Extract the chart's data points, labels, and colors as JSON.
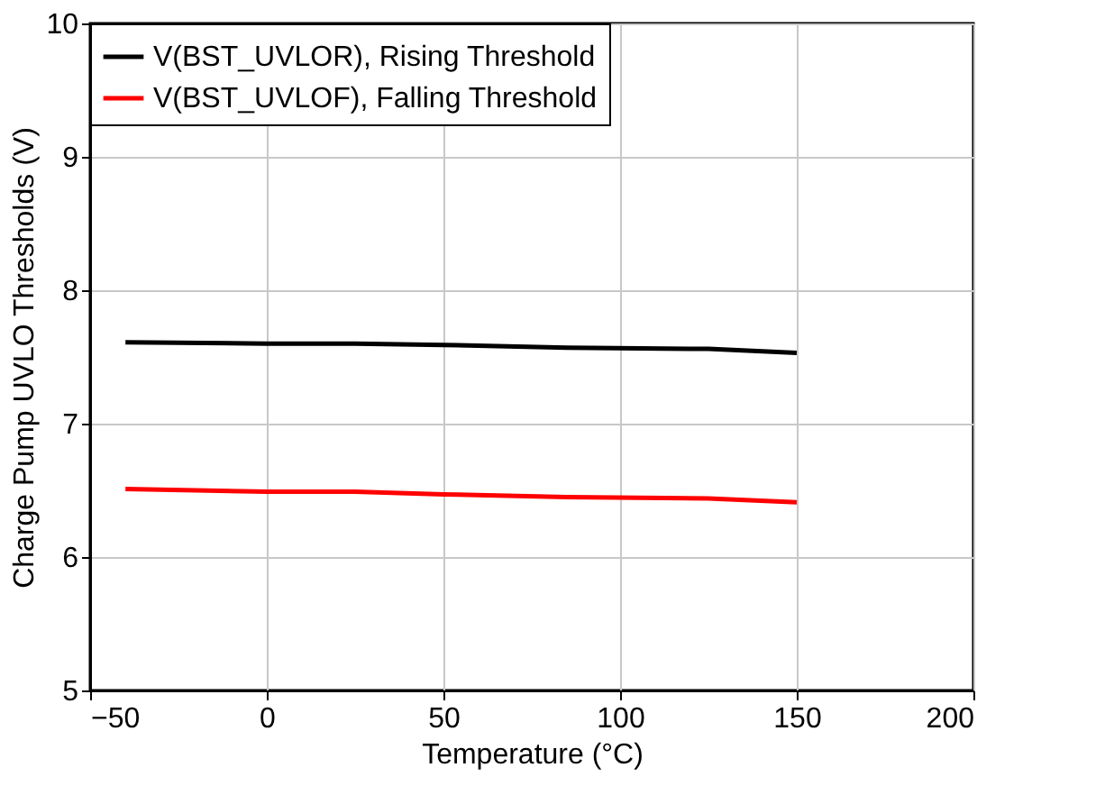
{
  "chart_data": {
    "type": "line",
    "xlabel": "Temperature (°C)",
    "ylabel": "Charge Pump UVLO Thresholds (V)",
    "xlim": [
      -50,
      200
    ],
    "xticks": [
      -50,
      0,
      50,
      100,
      150,
      200
    ],
    "ylim": [
      5,
      10
    ],
    "yticks": [
      5,
      6,
      7,
      8,
      9,
      10
    ],
    "grid": true,
    "legend": "top left",
    "marker": "none",
    "line_style": "solid",
    "series": [
      {
        "name": "V(BST_UVLOR), Rising Threshold",
        "color": "#000000",
        "x": [
          -40,
          0,
          25,
          50,
          85,
          125,
          150
        ],
        "values": [
          7.61,
          7.6,
          7.6,
          7.59,
          7.57,
          7.56,
          7.53
        ]
      },
      {
        "name": "V(BST_UVLOF), Falling Threshold",
        "color": "#ff0000",
        "x": [
          -40,
          0,
          25,
          50,
          85,
          125,
          150
        ],
        "values": [
          6.51,
          6.49,
          6.49,
          6.47,
          6.45,
          6.44,
          6.41
        ]
      }
    ]
  }
}
